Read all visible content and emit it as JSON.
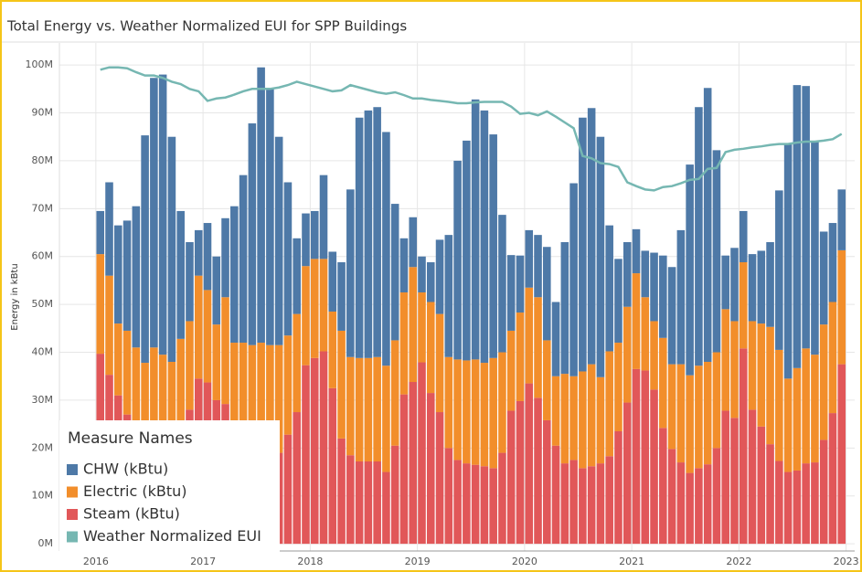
{
  "chart_data": {
    "type": "bar",
    "stacked": true,
    "title": "Total Energy vs. Weather Normalized EUI for SPP Buildings",
    "y_label": "Energy in kBtu",
    "legend_title": "Measure Names",
    "legend": "lower left",
    "grid": true,
    "x": [
      2016,
      2016.0833,
      2016.1667,
      2016.25,
      2016.3333,
      2016.4167,
      2016.5,
      2016.5833,
      2016.6667,
      2016.75,
      2016.8333,
      2016.9167,
      2017,
      2017.0833,
      2017.1667,
      2017.25,
      2017.3333,
      2017.4167,
      2017.5,
      2017.5833,
      2017.6667,
      2017.75,
      2017.8333,
      2017.9167,
      2018,
      2018.0833,
      2018.1667,
      2018.25,
      2018.3333,
      2018.4167,
      2018.5,
      2018.5833,
      2018.6667,
      2018.75,
      2018.8333,
      2018.9167,
      2019,
      2019.0833,
      2019.1667,
      2019.25,
      2019.3333,
      2019.4167,
      2019.5,
      2019.5833,
      2019.6667,
      2019.75,
      2019.8333,
      2019.9167,
      2020,
      2020.0833,
      2020.1667,
      2020.25,
      2020.3333,
      2020.4167,
      2020.5,
      2020.5833,
      2020.6667,
      2020.75,
      2020.8333,
      2020.9167,
      2021,
      2021.0833,
      2021.1667,
      2021.25,
      2021.3333,
      2021.4167,
      2021.5,
      2021.5833,
      2021.6667,
      2021.75,
      2021.8333,
      2021.9167,
      2022,
      2022.0833,
      2022.1667,
      2022.25,
      2022.3333,
      2022.4167,
      2022.5,
      2022.5833,
      2022.6667,
      2022.75,
      2022.8333,
      2022.9167
    ],
    "xlim": [
      2015.66,
      2023.08
    ],
    "xticks": [
      2016,
      2017,
      2018,
      2019,
      2020,
      2021,
      2022,
      2023
    ],
    "ylim": [
      -1500000,
      104600000
    ],
    "yticks": [
      {
        "value": 0,
        "label": "0M"
      },
      {
        "value": 10000000,
        "label": "10M"
      },
      {
        "value": 20000000,
        "label": "20M"
      },
      {
        "value": 30000000,
        "label": "30M"
      },
      {
        "value": 40000000,
        "label": "40M"
      },
      {
        "value": 50000000,
        "label": "50M"
      },
      {
        "value": 60000000,
        "label": "60M"
      },
      {
        "value": 70000000,
        "label": "70M"
      },
      {
        "value": 80000000,
        "label": "80M"
      },
      {
        "value": 90000000,
        "label": "90M"
      },
      {
        "value": 100000000,
        "label": "100M"
      }
    ],
    "series": [
      {
        "name": "CHW (kBtu)",
        "color": "#4e79a7",
        "values": [
          9000000,
          19500000,
          20500000,
          23000000,
          29500000,
          47500000,
          56300000,
          58500000,
          47000000,
          26700000,
          16500000,
          9500000,
          14000000,
          14200000,
          16500000,
          28500000,
          35000000,
          46300000,
          57500000,
          53500000,
          43500000,
          32000000,
          15800000,
          11000000,
          10000000,
          17500000,
          12500000,
          14300000,
          35000000,
          50200000,
          51700000,
          52200000,
          48800000,
          28500000,
          11300000,
          10400000,
          7500000,
          8300000,
          15500000,
          25500000,
          41500000,
          45900000,
          54300000,
          52700000,
          46700000,
          28700000,
          15800000,
          11900000,
          12000000,
          13000000,
          19500000,
          15500000,
          27500000,
          40300000,
          53000000,
          53500000,
          50200000,
          26300000,
          17500000,
          13500000,
          9200000,
          9700000,
          14300000,
          17200000,
          20300000,
          28000000,
          44000000,
          54000000,
          57200000,
          42200000,
          11200000,
          15300000,
          10700000,
          14000000,
          15200000,
          17700000,
          33300000,
          49000000,
          59100000,
          54800000,
          44500000,
          19400000,
          16500000,
          12700000
        ]
      },
      {
        "name": "Electric (kBtu)",
        "color": "#f28e2b",
        "values": [
          20800000,
          20700000,
          15000000,
          17500000,
          17000000,
          17800000,
          22000000,
          20500000,
          18000000,
          19800000,
          18500000,
          21500000,
          19300000,
          15800000,
          22300000,
          17000000,
          20000000,
          21500000,
          23000000,
          22500000,
          22500000,
          20700000,
          20500000,
          20700000,
          20700000,
          19300000,
          16000000,
          22500000,
          20500000,
          21600000,
          21600000,
          21800000,
          22200000,
          22000000,
          21300000,
          24000000,
          14600000,
          19000000,
          20500000,
          19000000,
          21000000,
          21500000,
          22000000,
          21600000,
          23000000,
          21000000,
          16700000,
          18500000,
          20000000,
          21000000,
          16700000,
          14500000,
          18700000,
          17500000,
          20200000,
          21300000,
          18000000,
          21900000,
          18500000,
          20000000,
          20000000,
          15300000,
          14300000,
          18800000,
          17700000,
          20500000,
          20400000,
          21400000,
          21400000,
          20000000,
          21200000,
          20200000,
          18000000,
          18500000,
          21500000,
          24500000,
          23200000,
          19500000,
          21400000,
          24000000,
          22500000,
          24100000,
          23200000,
          23800000
        ]
      },
      {
        "name": "Steam (kBtu)",
        "color": "#e15759",
        "values": [
          39700000,
          35300000,
          31000000,
          27000000,
          24000000,
          20000000,
          19000000,
          19000000,
          20000000,
          23000000,
          28000000,
          34500000,
          33700000,
          30000000,
          29200000,
          25000000,
          22000000,
          20000000,
          19000000,
          19000000,
          19000000,
          22800000,
          27500000,
          37300000,
          38800000,
          40200000,
          32500000,
          22000000,
          18500000,
          17200000,
          17200000,
          17200000,
          15000000,
          20500000,
          31200000,
          33800000,
          37900000,
          31500000,
          27500000,
          20000000,
          17500000,
          16800000,
          16500000,
          16200000,
          15800000,
          19000000,
          27800000,
          29800000,
          33500000,
          30500000,
          25800000,
          20500000,
          16800000,
          17500000,
          15800000,
          16200000,
          16800000,
          18300000,
          23500000,
          29500000,
          36500000,
          36200000,
          32200000,
          24200000,
          19800000,
          17000000,
          14800000,
          15800000,
          16600000,
          20000000,
          27800000,
          26300000,
          40800000,
          28000000,
          24500000,
          20800000,
          17300000,
          15000000,
          15300000,
          16800000,
          17000000,
          21700000,
          27300000,
          37500000
        ]
      },
      {
        "name": "Weather Normalized EUI",
        "color": "#76b7b2",
        "type": "line",
        "values": [
          99000000,
          99500000,
          99500000,
          99300000,
          98500000,
          97800000,
          97800000,
          97300000,
          96500000,
          96000000,
          95000000,
          94500000,
          92500000,
          93000000,
          93200000,
          93800000,
          94500000,
          95000000,
          95000000,
          95000000,
          95300000,
          95800000,
          96500000,
          96000000,
          95500000,
          95000000,
          94500000,
          94700000,
          95800000,
          95300000,
          94800000,
          94300000,
          94000000,
          94300000,
          93700000,
          93000000,
          93000000,
          92700000,
          92500000,
          92300000,
          92000000,
          92000000,
          92200000,
          92300000,
          92300000,
          92300000,
          91300000,
          89800000,
          90000000,
          89500000,
          90300000,
          89200000,
          88000000,
          86800000,
          81000000,
          80500000,
          79500000,
          79300000,
          78700000,
          75500000,
          74700000,
          74000000,
          73800000,
          74500000,
          74700000,
          75300000,
          76000000,
          76200000,
          78300000,
          78500000,
          81800000,
          82300000,
          82500000,
          82800000,
          83000000,
          83300000,
          83500000,
          83500000,
          83800000,
          84000000,
          84000000,
          84200000,
          84500000,
          85600000
        ]
      }
    ]
  }
}
